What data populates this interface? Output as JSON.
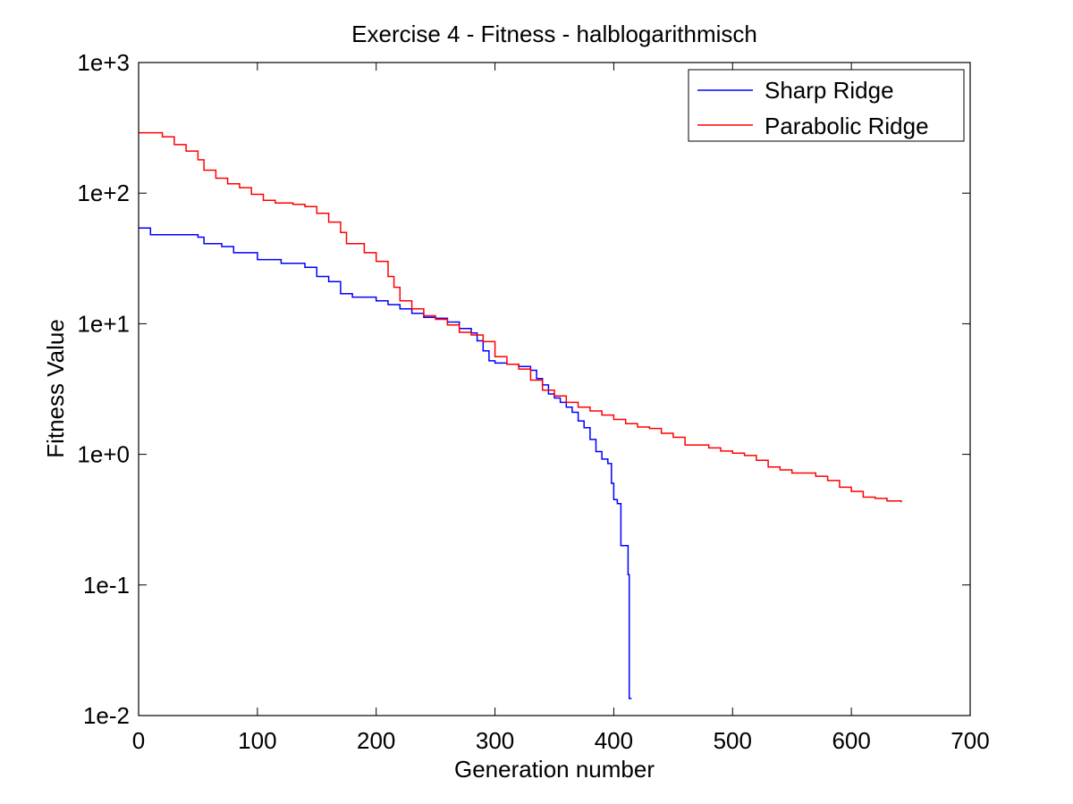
{
  "chart_data": {
    "type": "line",
    "title": "Exercise 4 - Fitness - halblogarithmisch",
    "xlabel": "Generation number",
    "ylabel": "Fitness Value",
    "xlim": [
      0,
      700
    ],
    "ylim": [
      0.01,
      1000
    ],
    "yscale": "log",
    "x_ticks": [
      0,
      100,
      200,
      300,
      400,
      500,
      600,
      700
    ],
    "x_tick_labels": [
      "0",
      "100",
      "200",
      "300",
      "400",
      "500",
      "600",
      "700"
    ],
    "y_ticks": [
      0.01,
      0.1,
      1,
      10,
      100,
      1000
    ],
    "y_tick_labels": [
      "1e-2",
      "1e-1",
      "1e+0",
      "1e+1",
      "1e+2",
      "1e+3"
    ],
    "grid": false,
    "legend_position": "top-right",
    "series": [
      {
        "name": "Sharp Ridge",
        "color": "#0000ff",
        "step": true,
        "points": [
          [
            0,
            54
          ],
          [
            10,
            48
          ],
          [
            30,
            48
          ],
          [
            50,
            46
          ],
          [
            55,
            41
          ],
          [
            70,
            39
          ],
          [
            80,
            35
          ],
          [
            100,
            31
          ],
          [
            120,
            29
          ],
          [
            140,
            27
          ],
          [
            150,
            23
          ],
          [
            160,
            21
          ],
          [
            170,
            17
          ],
          [
            180,
            16
          ],
          [
            200,
            15
          ],
          [
            210,
            14
          ],
          [
            220,
            13
          ],
          [
            230,
            12
          ],
          [
            240,
            11.2
          ],
          [
            250,
            11
          ],
          [
            260,
            10.3
          ],
          [
            270,
            9.2
          ],
          [
            280,
            8.5
          ],
          [
            285,
            7.4
          ],
          [
            290,
            6.2
          ],
          [
            295,
            5.2
          ],
          [
            300,
            5.0
          ],
          [
            310,
            4.9
          ],
          [
            320,
            4.7
          ],
          [
            330,
            4.4
          ],
          [
            335,
            3.8
          ],
          [
            340,
            3.4
          ],
          [
            345,
            2.9
          ],
          [
            350,
            2.7
          ],
          [
            355,
            2.5
          ],
          [
            360,
            2.3
          ],
          [
            365,
            2.1
          ],
          [
            370,
            1.8
          ],
          [
            375,
            1.6
          ],
          [
            380,
            1.3
          ],
          [
            385,
            1.05
          ],
          [
            390,
            0.92
          ],
          [
            395,
            0.85
          ],
          [
            398,
            0.6
          ],
          [
            400,
            0.45
          ],
          [
            403,
            0.42
          ],
          [
            406,
            0.2
          ],
          [
            410,
            0.2
          ],
          [
            412,
            0.12
          ],
          [
            413,
            0.0135
          ],
          [
            415,
            0.0135
          ]
        ]
      },
      {
        "name": "Parabolic Ridge",
        "color": "#ff0000",
        "step": true,
        "points": [
          [
            0,
            290
          ],
          [
            20,
            270
          ],
          [
            30,
            235
          ],
          [
            40,
            210
          ],
          [
            50,
            180
          ],
          [
            55,
            150
          ],
          [
            65,
            130
          ],
          [
            75,
            118
          ],
          [
            85,
            110
          ],
          [
            95,
            98
          ],
          [
            105,
            88
          ],
          [
            115,
            84
          ],
          [
            130,
            82
          ],
          [
            140,
            79
          ],
          [
            150,
            70
          ],
          [
            160,
            60
          ],
          [
            170,
            50
          ],
          [
            175,
            41
          ],
          [
            190,
            35
          ],
          [
            200,
            30
          ],
          [
            210,
            23
          ],
          [
            215,
            19
          ],
          [
            220,
            15
          ],
          [
            230,
            13
          ],
          [
            240,
            11.5
          ],
          [
            250,
            10.8
          ],
          [
            260,
            9.8
          ],
          [
            270,
            8.6
          ],
          [
            280,
            8.2
          ],
          [
            290,
            7.3
          ],
          [
            300,
            5.6
          ],
          [
            310,
            4.9
          ],
          [
            320,
            4.5
          ],
          [
            330,
            3.7
          ],
          [
            340,
            3.1
          ],
          [
            350,
            2.8
          ],
          [
            360,
            2.5
          ],
          [
            370,
            2.3
          ],
          [
            380,
            2.15
          ],
          [
            390,
            2.0
          ],
          [
            400,
            1.85
          ],
          [
            410,
            1.72
          ],
          [
            420,
            1.62
          ],
          [
            430,
            1.58
          ],
          [
            440,
            1.45
          ],
          [
            450,
            1.35
          ],
          [
            460,
            1.18
          ],
          [
            480,
            1.12
          ],
          [
            490,
            1.06
          ],
          [
            500,
            1.02
          ],
          [
            510,
            0.98
          ],
          [
            520,
            0.9
          ],
          [
            530,
            0.8
          ],
          [
            540,
            0.76
          ],
          [
            550,
            0.72
          ],
          [
            570,
            0.68
          ],
          [
            580,
            0.63
          ],
          [
            590,
            0.56
          ],
          [
            600,
            0.52
          ],
          [
            610,
            0.47
          ],
          [
            620,
            0.46
          ],
          [
            630,
            0.44
          ],
          [
            642,
            0.43
          ]
        ]
      }
    ]
  }
}
